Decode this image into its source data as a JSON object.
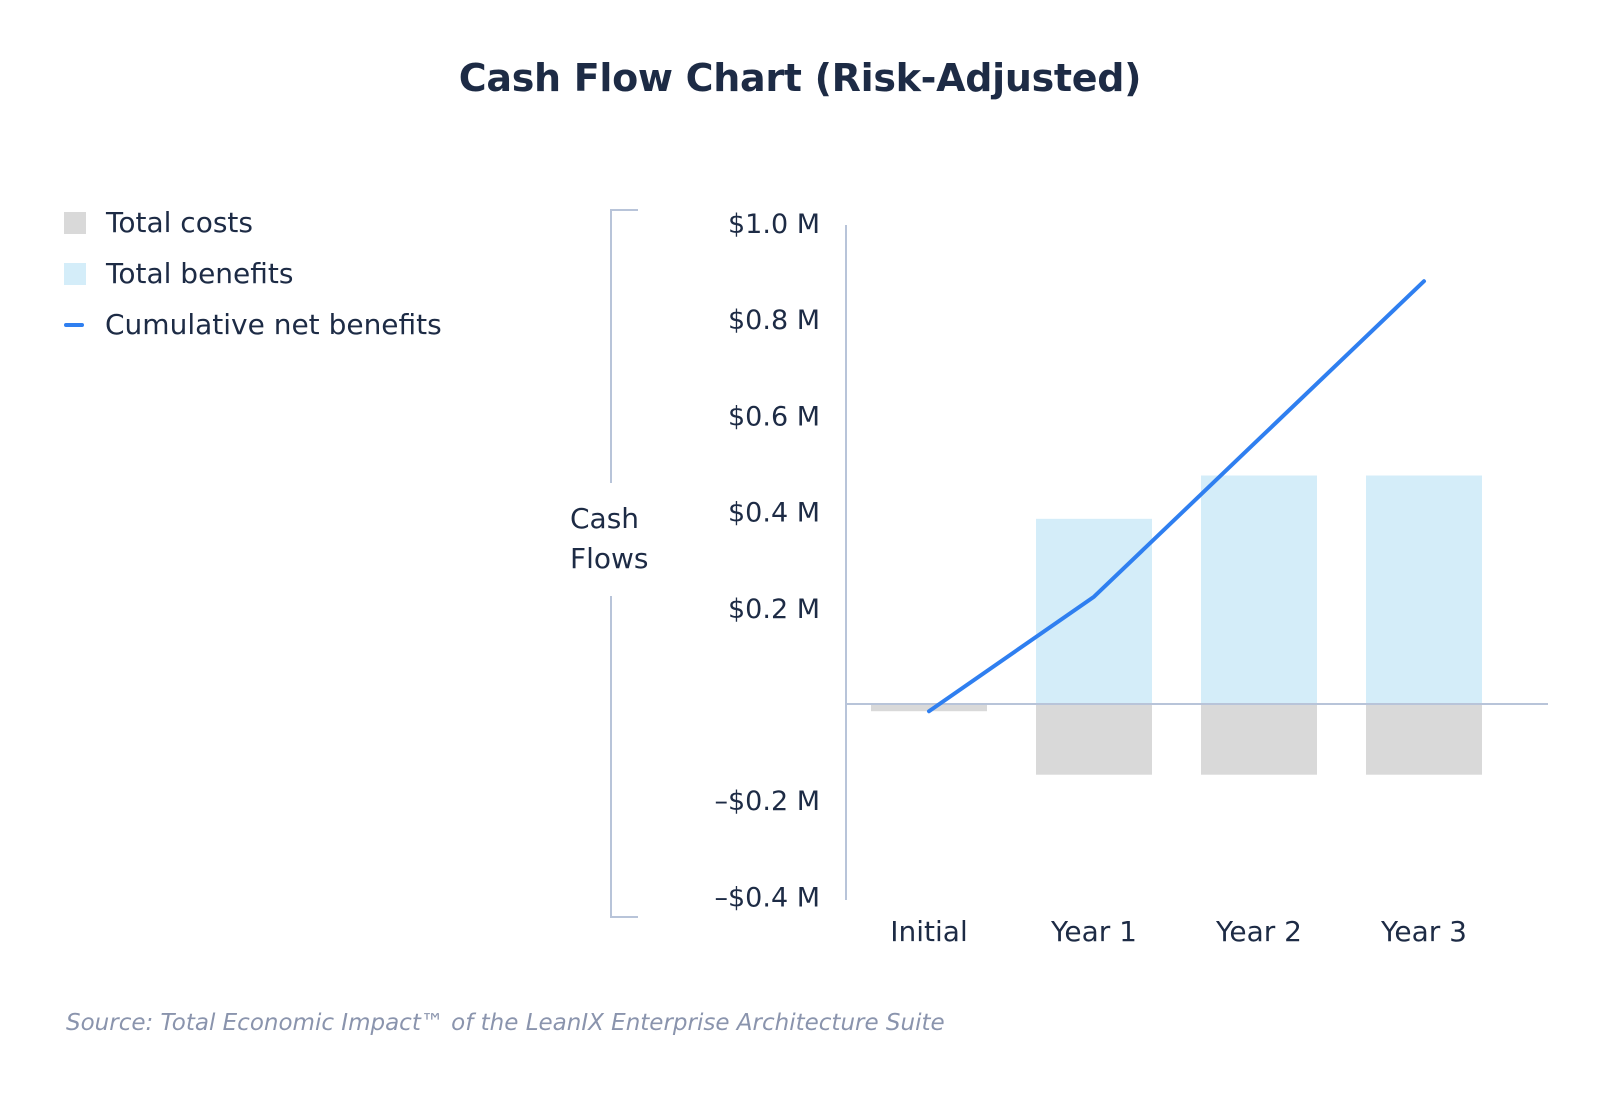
{
  "colors": {
    "costs": "#d9d9d9",
    "benefits": "#d4edf9",
    "cumulative_line": "#2f7ff0",
    "axis": "#b8c4d9",
    "text": "#1d2b45",
    "source_text": "#8a94ad"
  },
  "legend": [
    {
      "label": "Total costs",
      "kind": "swatch",
      "color": "#d9d9d9"
    },
    {
      "label": "Total benefits",
      "kind": "swatch",
      "color": "#d4edf9"
    },
    {
      "label": "Cumulative net benefits",
      "kind": "line",
      "color": "#2f7ff0"
    }
  ],
  "source": "Source: Total Economic Impact™ of the LeanIX Enterprise Architecture Suite",
  "chart_data": {
    "type": "bar",
    "title": "Cash Flow Chart (Risk-Adjusted)",
    "ylabel_lines": [
      "Cash",
      "Flows"
    ],
    "xlabel": "",
    "categories": [
      "Initial",
      "Year 1",
      "Year 2",
      "Year 3"
    ],
    "ylim": [
      -0.4,
      1.0
    ],
    "yticks": [
      1.0,
      0.8,
      0.6,
      0.4,
      0.2,
      -0.2,
      -0.4
    ],
    "ytick_labels": [
      "$1.0 M",
      "$0.8 M",
      "$0.6 M",
      "$0.4 M",
      "$0.2 M",
      "–$0.2 M",
      "–$0.4 M"
    ],
    "series": [
      {
        "name": "Total costs",
        "type": "bar",
        "values": [
          -0.015,
          -0.147,
          -0.147,
          -0.147
        ]
      },
      {
        "name": "Total benefits",
        "type": "bar",
        "values": [
          0,
          0.385,
          0.475,
          0.475
        ]
      },
      {
        "name": "Cumulative net benefits",
        "type": "line",
        "values": [
          -0.015,
          0.223,
          0.551,
          0.879
        ]
      }
    ],
    "grid": false,
    "legend_position": "top-left"
  }
}
